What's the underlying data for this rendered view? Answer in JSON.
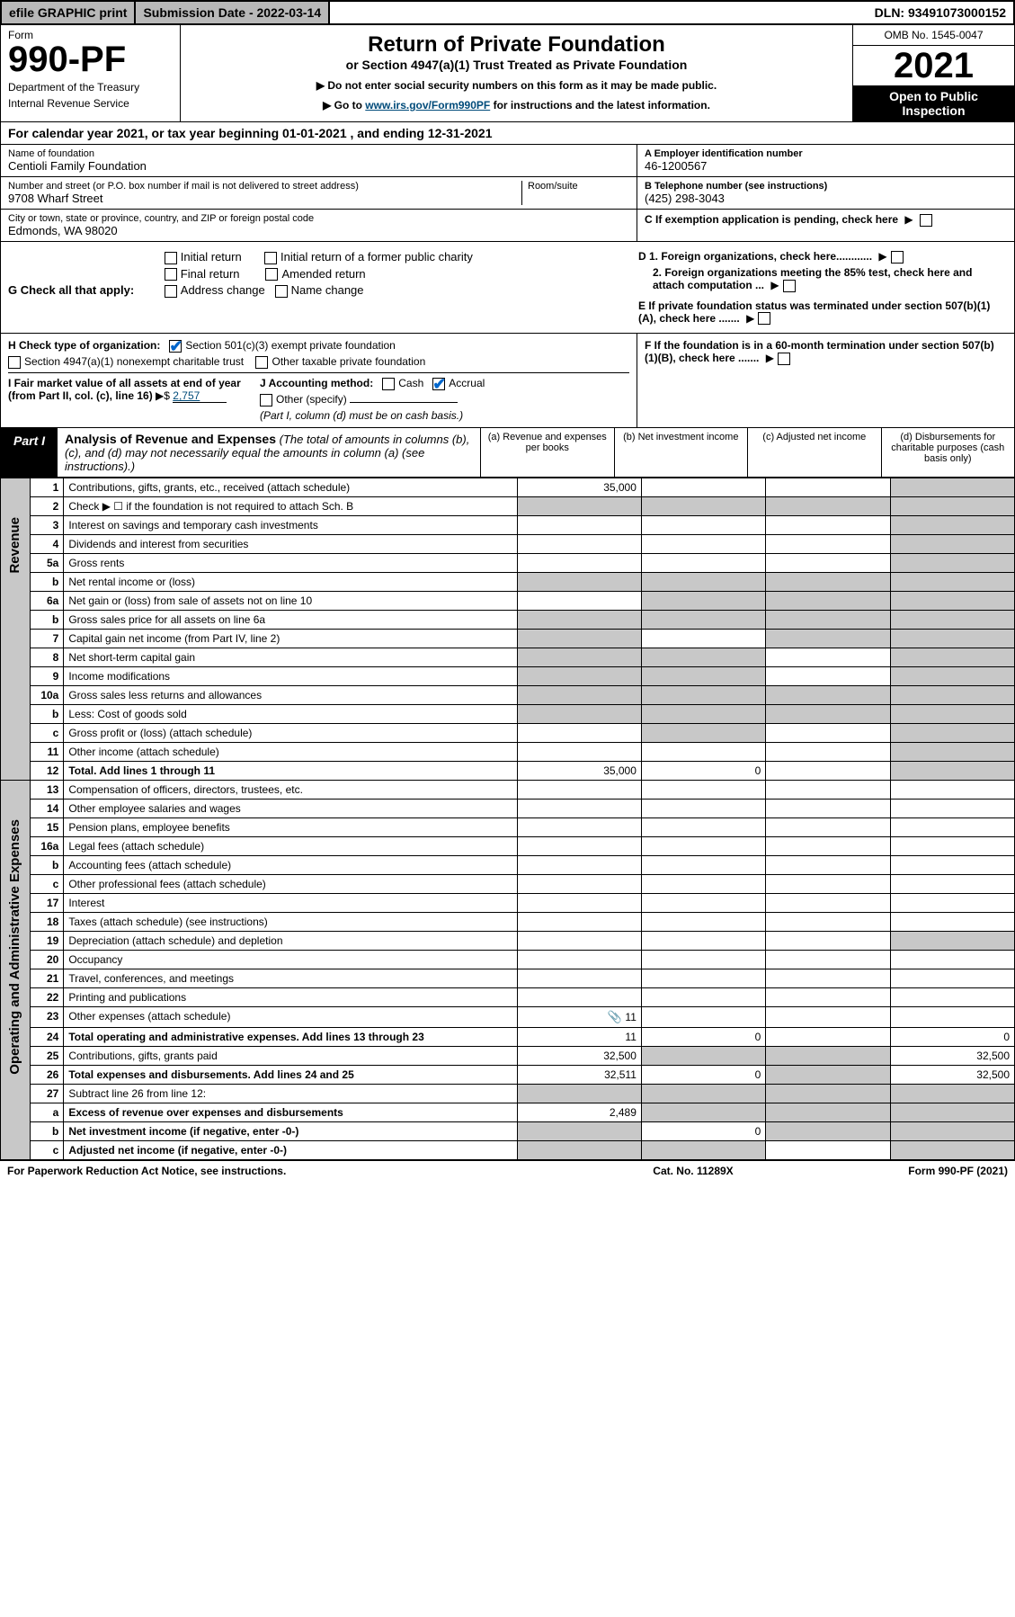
{
  "topbar": {
    "efile": "efile GRAPHIC print",
    "submission": "Submission Date - 2022-03-14",
    "dln": "DLN: 93491073000152"
  },
  "header": {
    "form_label": "Form",
    "form_number": "990-PF",
    "dept1": "Department of the Treasury",
    "dept2": "Internal Revenue Service",
    "title": "Return of Private Foundation",
    "subtitle": "or Section 4947(a)(1) Trust Treated as Private Foundation",
    "instr1": "▶ Do not enter social security numbers on this form as it may be made public.",
    "instr2_pre": "▶ Go to ",
    "instr2_link": "www.irs.gov/Form990PF",
    "instr2_post": " for instructions and the latest information.",
    "omb": "OMB No. 1545-0047",
    "year": "2021",
    "inspect": "Open to Public Inspection"
  },
  "calendar": {
    "text_pre": "For calendar year 2021, or tax year beginning ",
    "begin": "01-01-2021",
    "text_mid": " , and ending ",
    "end": "12-31-2021"
  },
  "info": {
    "name_label": "Name of foundation",
    "name": "Centioli Family Foundation",
    "addr_label": "Number and street (or P.O. box number if mail is not delivered to street address)",
    "addr": "9708 Wharf Street",
    "room_label": "Room/suite",
    "city_label": "City or town, state or province, country, and ZIP or foreign postal code",
    "city": "Edmonds, WA  98020",
    "ein_label": "A Employer identification number",
    "ein": "46-1200567",
    "phone_label": "B Telephone number (see instructions)",
    "phone": "(425) 298-3043",
    "c_label": "C If exemption application is pending, check here"
  },
  "G": {
    "label": "G Check all that apply:",
    "opts": [
      "Initial return",
      "Final return",
      "Address change",
      "Initial return of a former public charity",
      "Amended return",
      "Name change"
    ],
    "D1": "D 1. Foreign organizations, check here............",
    "D2": "2. Foreign organizations meeting the 85% test, check here and attach computation ...",
    "E": "E  If private foundation status was terminated under section 507(b)(1)(A), check here ......."
  },
  "H": {
    "label": "H Check type of organization:",
    "opt1": "Section 501(c)(3) exempt private foundation",
    "opt2": "Section 4947(a)(1) nonexempt charitable trust",
    "opt3": "Other taxable private foundation"
  },
  "I": {
    "label": "I Fair market value of all assets at end of year (from Part II, col. (c), line 16)",
    "val_pre": "▶$ ",
    "val": "2,757"
  },
  "J": {
    "label": "J Accounting method:",
    "cash": "Cash",
    "accrual": "Accrual",
    "other": "Other (specify)",
    "note": "(Part I, column (d) must be on cash basis.)"
  },
  "F": {
    "label": "F  If the foundation is in a 60-month termination under section 507(b)(1)(B), check here ......."
  },
  "part1": {
    "badge": "Part I",
    "title": "Analysis of Revenue and Expenses",
    "subtitle": "(The total of amounts in columns (b), (c), and (d) may not necessarily equal the amounts in column (a) (see instructions).)",
    "cols": {
      "a": "(a) Revenue and expenses per books",
      "b": "(b) Net investment income",
      "c": "(c) Adjusted net income",
      "d": "(d) Disbursements for charitable purposes (cash basis only)"
    }
  },
  "sides": {
    "revenue": "Revenue",
    "expenses": "Operating and Administrative Expenses"
  },
  "rows": [
    {
      "n": "1",
      "desc": "Contributions, gifts, grants, etc., received (attach schedule)",
      "a": "35,000",
      "shade_bcd": false,
      "shade_d": true
    },
    {
      "n": "2",
      "desc": "Check ▶ ☐ if the foundation is not required to attach Sch. B",
      "shade_all": true
    },
    {
      "n": "3",
      "desc": "Interest on savings and temporary cash investments",
      "shade_d": true
    },
    {
      "n": "4",
      "desc": "Dividends and interest from securities",
      "shade_d": true
    },
    {
      "n": "5a",
      "desc": "Gross rents",
      "shade_d": true
    },
    {
      "n": "b",
      "desc": "Net rental income or (loss)",
      "shade_all": true
    },
    {
      "n": "6a",
      "desc": "Net gain or (loss) from sale of assets not on line 10",
      "shade_bcd": true
    },
    {
      "n": "b",
      "desc": "Gross sales price for all assets on line 6a",
      "shade_all": true
    },
    {
      "n": "7",
      "desc": "Capital gain net income (from Part IV, line 2)",
      "shade_a": true,
      "shade_cd": true
    },
    {
      "n": "8",
      "desc": "Net short-term capital gain",
      "shade_ab": true,
      "shade_d": true
    },
    {
      "n": "9",
      "desc": "Income modifications",
      "shade_ab": true,
      "shade_d": true
    },
    {
      "n": "10a",
      "desc": "Gross sales less returns and allowances",
      "shade_all": true
    },
    {
      "n": "b",
      "desc": "Less: Cost of goods sold",
      "shade_all": true
    },
    {
      "n": "c",
      "desc": "Gross profit or (loss) (attach schedule)",
      "shade_b": true,
      "shade_d": true
    },
    {
      "n": "11",
      "desc": "Other income (attach schedule)",
      "shade_d": true
    },
    {
      "n": "12",
      "desc": "Total. Add lines 1 through 11",
      "b": true,
      "a": "35,000",
      "bv": "0",
      "shade_d": true
    },
    {
      "n": "13",
      "desc": "Compensation of officers, directors, trustees, etc."
    },
    {
      "n": "14",
      "desc": "Other employee salaries and wages"
    },
    {
      "n": "15",
      "desc": "Pension plans, employee benefits"
    },
    {
      "n": "16a",
      "desc": "Legal fees (attach schedule)"
    },
    {
      "n": "b",
      "desc": "Accounting fees (attach schedule)"
    },
    {
      "n": "c",
      "desc": "Other professional fees (attach schedule)"
    },
    {
      "n": "17",
      "desc": "Interest"
    },
    {
      "n": "18",
      "desc": "Taxes (attach schedule) (see instructions)"
    },
    {
      "n": "19",
      "desc": "Depreciation (attach schedule) and depletion",
      "shade_d": true
    },
    {
      "n": "20",
      "desc": "Occupancy"
    },
    {
      "n": "21",
      "desc": "Travel, conferences, and meetings"
    },
    {
      "n": "22",
      "desc": "Printing and publications"
    },
    {
      "n": "23",
      "desc": "Other expenses (attach schedule)",
      "icon": true,
      "a": "11"
    },
    {
      "n": "24",
      "desc": "Total operating and administrative expenses. Add lines 13 through 23",
      "b": true,
      "a": "11",
      "bv": "0",
      "d": "0"
    },
    {
      "n": "25",
      "desc": "Contributions, gifts, grants paid",
      "a": "32,500",
      "shade_bc": true,
      "d": "32,500"
    },
    {
      "n": "26",
      "desc": "Total expenses and disbursements. Add lines 24 and 25",
      "b": true,
      "a": "32,511",
      "bv": "0",
      "shade_c": true,
      "d": "32,500"
    },
    {
      "n": "27",
      "desc": "Subtract line 26 from line 12:",
      "shade_all": true
    },
    {
      "n": "a",
      "desc": "Excess of revenue over expenses and disbursements",
      "b": true,
      "a": "2,489",
      "shade_bcd": true
    },
    {
      "n": "b",
      "desc": "Net investment income (if negative, enter -0-)",
      "b": true,
      "shade_a": true,
      "bv": "0",
      "shade_cd": true
    },
    {
      "n": "c",
      "desc": "Adjusted net income (if negative, enter -0-)",
      "b": true,
      "shade_ab": true,
      "shade_d": true
    }
  ],
  "footer": {
    "left": "For Paperwork Reduction Act Notice, see instructions.",
    "mid": "Cat. No. 11289X",
    "right": "Form 990-PF (2021)"
  },
  "colors": {
    "shaded": "#c8c8c8",
    "link": "#004b7a",
    "check": "#0066cc"
  }
}
